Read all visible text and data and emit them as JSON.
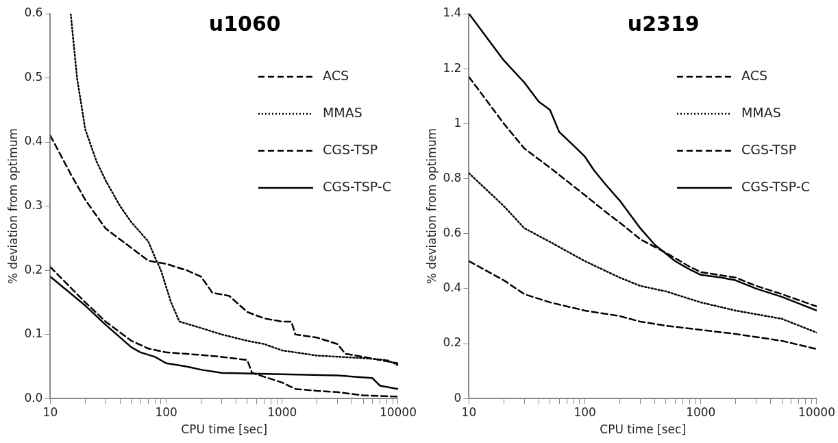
{
  "chart_data": [
    {
      "type": "line",
      "title": "u1060",
      "xlabel": "CPU time [sec]",
      "ylabel": "% deviation from optimum",
      "log": "x",
      "grid": false,
      "legend": "top right",
      "marker": "none",
      "xlim": [
        10,
        10000
      ],
      "xticks": [
        10,
        {
          "value": 20,
          "label": null
        },
        {
          "value": 30,
          "label": null
        },
        {
          "value": 40,
          "label": null
        },
        {
          "value": 50,
          "label": null
        },
        {
          "value": 60,
          "label": null
        },
        {
          "value": 70,
          "label": null
        },
        {
          "value": 80,
          "label": null
        },
        {
          "value": 90,
          "label": null
        },
        100,
        {
          "value": 200,
          "label": null
        },
        {
          "value": 300,
          "label": null
        },
        {
          "value": 400,
          "label": null
        },
        {
          "value": 500,
          "label": null
        },
        {
          "value": 600,
          "label": null
        },
        {
          "value": 700,
          "label": null
        },
        {
          "value": 800,
          "label": null
        },
        {
          "value": 900,
          "label": null
        },
        1000,
        {
          "value": 2000,
          "label": null
        },
        {
          "value": 3000,
          "label": null
        },
        {
          "value": 4000,
          "label": null
        },
        {
          "value": 5000,
          "label": null
        },
        {
          "value": 6000,
          "label": null
        },
        {
          "value": 7000,
          "label": null
        },
        {
          "value": 8000,
          "label": null
        },
        {
          "value": 9000,
          "label": null
        },
        10000
      ],
      "ylim": [
        0,
        0.6
      ],
      "yticks": [
        {
          "value": 0,
          "label": "0.0"
        },
        0.1,
        0.2,
        0.3,
        0.4,
        0.5,
        0.6
      ],
      "series": [
        {
          "name": "ACS",
          "color": "#000000",
          "line_style": "dashed",
          "x": [
            10,
            15,
            20,
            30,
            50,
            70,
            100,
            150,
            200,
            250,
            350,
            500,
            700,
            1000,
            1200,
            1300,
            2000,
            3000,
            3500,
            5000,
            7000,
            10000
          ],
          "values": [
            0.41,
            0.35,
            0.31,
            0.265,
            0.235,
            0.215,
            0.21,
            0.2,
            0.19,
            0.165,
            0.16,
            0.135,
            0.125,
            0.12,
            0.12,
            0.1,
            0.095,
            0.085,
            0.07,
            0.065,
            0.06,
            0.055
          ]
        },
        {
          "name": "MMAS",
          "color": "#000000",
          "line_style": "dotted",
          "x": [
            15,
            17,
            20,
            25,
            30,
            40,
            50,
            70,
            80,
            90,
            110,
            130,
            200,
            300,
            500,
            700,
            1000,
            2000,
            5000,
            8000,
            10000
          ],
          "values": [
            0.6,
            0.5,
            0.42,
            0.37,
            0.34,
            0.3,
            0.275,
            0.245,
            0.22,
            0.2,
            0.15,
            0.12,
            0.11,
            0.1,
            0.09,
            0.085,
            0.075,
            0.067,
            0.063,
            0.06,
            0.052
          ]
        },
        {
          "name": "CGS-TSP",
          "color": "#000000",
          "line_style": "dashed",
          "x": [
            10,
            20,
            30,
            50,
            70,
            100,
            200,
            300,
            500,
            550,
            1000,
            1300,
            2000,
            3000,
            5000,
            10000
          ],
          "values": [
            0.205,
            0.15,
            0.12,
            0.09,
            0.078,
            0.072,
            0.068,
            0.065,
            0.06,
            0.04,
            0.025,
            0.015,
            0.012,
            0.01,
            0.005,
            0.003
          ]
        },
        {
          "name": "CGS-TSP-C",
          "color": "#000000",
          "line_style": "solid",
          "x": [
            10,
            20,
            30,
            50,
            60,
            80,
            100,
            150,
            200,
            300,
            1000,
            3000,
            6000,
            7000,
            10000
          ],
          "values": [
            0.19,
            0.145,
            0.115,
            0.08,
            0.072,
            0.065,
            0.055,
            0.05,
            0.045,
            0.04,
            0.038,
            0.036,
            0.032,
            0.02,
            0.015
          ]
        }
      ]
    },
    {
      "type": "line",
      "title": "u2319",
      "xlabel": "CPU time [sec]",
      "ylabel": "% deviation from optimum",
      "log": "x",
      "grid": false,
      "legend": "top right",
      "marker": "none",
      "xlim": [
        10,
        10000
      ],
      "xticks": [
        10,
        {
          "value": 20,
          "label": null
        },
        {
          "value": 30,
          "label": null
        },
        {
          "value": 40,
          "label": null
        },
        {
          "value": 50,
          "label": null
        },
        {
          "value": 60,
          "label": null
        },
        {
          "value": 70,
          "label": null
        },
        {
          "value": 80,
          "label": null
        },
        {
          "value": 90,
          "label": null
        },
        100,
        {
          "value": 200,
          "label": null
        },
        {
          "value": 300,
          "label": null
        },
        {
          "value": 400,
          "label": null
        },
        {
          "value": 500,
          "label": null
        },
        {
          "value": 600,
          "label": null
        },
        {
          "value": 700,
          "label": null
        },
        {
          "value": 800,
          "label": null
        },
        {
          "value": 900,
          "label": null
        },
        1000,
        {
          "value": 2000,
          "label": null
        },
        {
          "value": 3000,
          "label": null
        },
        {
          "value": 4000,
          "label": null
        },
        {
          "value": 5000,
          "label": null
        },
        {
          "value": 6000,
          "label": null
        },
        {
          "value": 7000,
          "label": null
        },
        {
          "value": 8000,
          "label": null
        },
        {
          "value": 9000,
          "label": null
        },
        10000
      ],
      "ylim": [
        0,
        1.4
      ],
      "yticks": [
        0,
        0.2,
        0.4,
        0.6,
        0.8,
        1,
        1.2,
        1.4
      ],
      "series": [
        {
          "name": "ACS",
          "color": "#000000",
          "line_style": "dashed",
          "x": [
            10,
            20,
            30,
            50,
            100,
            200,
            300,
            500,
            1000,
            2000,
            5000,
            10000
          ],
          "values": [
            0.5,
            0.43,
            0.38,
            0.35,
            0.32,
            0.3,
            0.28,
            0.265,
            0.25,
            0.235,
            0.21,
            0.18
          ]
        },
        {
          "name": "MMAS",
          "color": "#000000",
          "line_style": "dotted",
          "x": [
            10,
            20,
            30,
            50,
            100,
            200,
            300,
            500,
            1000,
            2000,
            5000,
            10000
          ],
          "values": [
            0.82,
            0.7,
            0.62,
            0.57,
            0.5,
            0.44,
            0.41,
            0.39,
            0.35,
            0.32,
            0.29,
            0.24
          ]
        },
        {
          "name": "CGS-TSP",
          "color": "#000000",
          "line_style": "dashed",
          "x": [
            10,
            20,
            30,
            50,
            100,
            150,
            200,
            300,
            500,
            800,
            1000,
            2000,
            3000,
            5000,
            10000
          ],
          "values": [
            1.17,
            1.0,
            0.91,
            0.84,
            0.74,
            0.68,
            0.64,
            0.58,
            0.53,
            0.48,
            0.46,
            0.44,
            0.41,
            0.38,
            0.335
          ]
        },
        {
          "name": "CGS-TSP-C",
          "color": "#000000",
          "line_style": "solid",
          "x": [
            10,
            20,
            30,
            40,
            50,
            60,
            80,
            100,
            120,
            150,
            200,
            300,
            400,
            600,
            800,
            1000,
            1500,
            2000,
            3000,
            5000,
            10000
          ],
          "values": [
            1.4,
            1.23,
            1.15,
            1.08,
            1.05,
            0.97,
            0.92,
            0.88,
            0.83,
            0.78,
            0.72,
            0.62,
            0.56,
            0.5,
            0.47,
            0.45,
            0.44,
            0.43,
            0.4,
            0.37,
            0.32
          ]
        }
      ]
    }
  ]
}
